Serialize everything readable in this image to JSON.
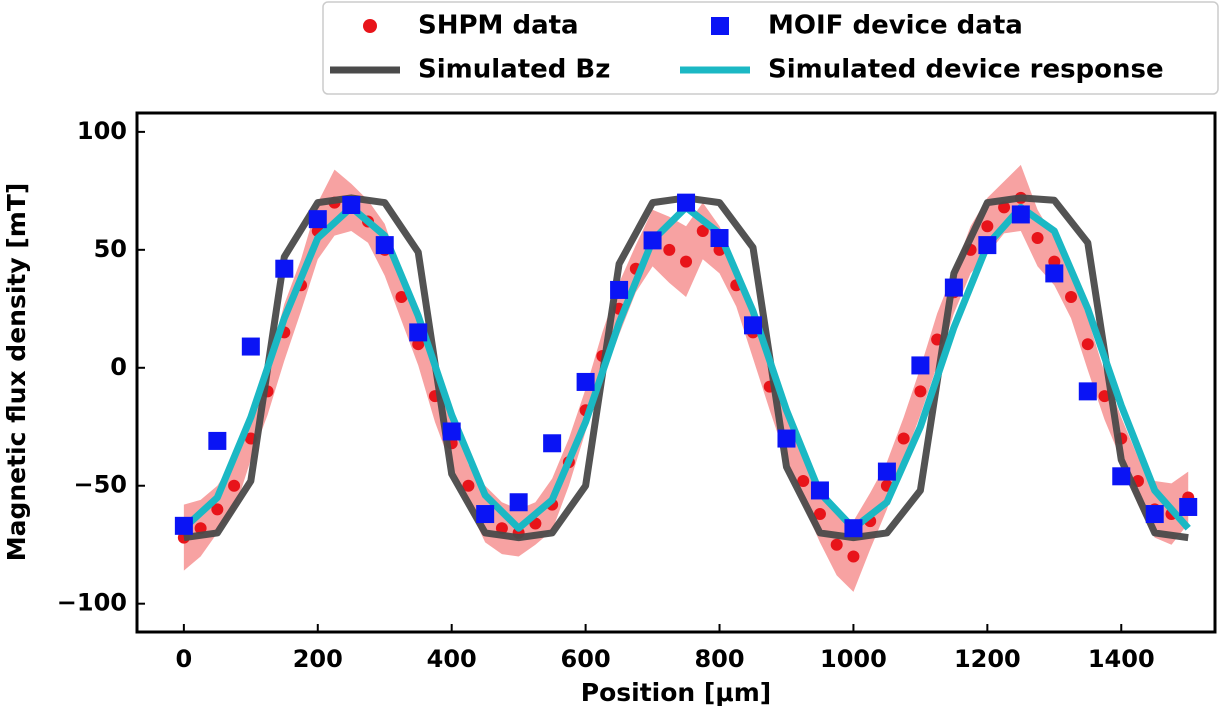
{
  "chart_data": {
    "type": "line",
    "xlabel": "Position [μm]",
    "ylabel": "Magnetic flux density [mT]",
    "xlim": [
      -70,
      1540
    ],
    "ylim": [
      -112,
      108
    ],
    "xticks": [
      0,
      200,
      400,
      600,
      800,
      1000,
      1200,
      1400
    ],
    "yticks": [
      {
        "value": -100,
        "label": "−100"
      },
      {
        "value": -50,
        "label": "−50"
      },
      0,
      50,
      100
    ],
    "legend": "top right",
    "series": [
      {
        "name": "SHPM data",
        "kind": "scatter",
        "marker": "circle",
        "color": "#e8141a",
        "band_color": "#f47a7a",
        "x": [
          0,
          25,
          50,
          75,
          100,
          125,
          150,
          175,
          200,
          225,
          250,
          275,
          300,
          325,
          350,
          375,
          400,
          425,
          450,
          475,
          500,
          525,
          550,
          575,
          600,
          625,
          650,
          675,
          700,
          725,
          750,
          775,
          800,
          825,
          850,
          875,
          900,
          925,
          950,
          975,
          1000,
          1025,
          1050,
          1075,
          1100,
          1125,
          1150,
          1175,
          1200,
          1225,
          1250,
          1275,
          1300,
          1325,
          1350,
          1375,
          1400,
          1425,
          1450,
          1475,
          1500
        ],
        "values": [
          -72,
          -68,
          -60,
          -50,
          -30,
          -10,
          15,
          35,
          58,
          70,
          68,
          62,
          50,
          30,
          10,
          -12,
          -32,
          -50,
          -62,
          -68,
          -70,
          -66,
          -58,
          -40,
          -18,
          5,
          25,
          42,
          55,
          50,
          45,
          58,
          50,
          35,
          15,
          -8,
          -30,
          -48,
          -62,
          -75,
          -80,
          -65,
          -50,
          -30,
          -10,
          12,
          32,
          50,
          60,
          68,
          72,
          55,
          45,
          30,
          10,
          -12,
          -30,
          -48,
          -60,
          -62,
          -55
        ],
        "error": [
          14,
          12,
          10,
          11,
          9,
          10,
          12,
          11,
          12,
          14,
          10,
          9,
          11,
          10,
          9,
          11,
          10,
          9,
          12,
          11,
          10,
          9,
          11,
          10,
          9,
          10,
          11,
          10,
          12,
          14,
          15,
          12,
          10,
          9,
          11,
          10,
          9,
          10,
          12,
          13,
          15,
          12,
          10,
          9,
          10,
          11,
          9,
          10,
          12,
          11,
          14,
          12,
          10,
          9,
          11,
          10,
          9,
          10,
          12,
          13,
          11
        ]
      },
      {
        "name": "MOIF device data",
        "kind": "scatter",
        "marker": "square",
        "color": "#0a14f5",
        "x": [
          0,
          50,
          100,
          150,
          200,
          250,
          300,
          350,
          400,
          450,
          500,
          550,
          600,
          650,
          700,
          750,
          800,
          850,
          900,
          950,
          1000,
          1050,
          1100,
          1150,
          1200,
          1250,
          1300,
          1350,
          1400,
          1450,
          1500
        ],
        "values": [
          -67,
          -31,
          9,
          42,
          63,
          69,
          52,
          15,
          -27,
          -62,
          -57,
          -32,
          -6,
          33,
          54,
          70,
          55,
          18,
          -30,
          -52,
          -68,
          -44,
          1,
          34,
          52,
          65,
          40,
          -10,
          -46,
          -62,
          -59
        ]
      },
      {
        "name": "Simulated Bz",
        "kind": "line",
        "color": "#4a4a4a",
        "x": [
          0,
          50,
          100,
          150,
          200,
          250,
          300,
          350,
          400,
          450,
          500,
          550,
          600,
          650,
          700,
          750,
          800,
          850,
          900,
          950,
          1000,
          1050,
          1100,
          1150,
          1200,
          1250,
          1300,
          1350,
          1400,
          1450,
          1500
        ],
        "values": [
          -72,
          -70,
          -48,
          47,
          70,
          72,
          70,
          49,
          -45,
          -70,
          -72,
          -70,
          -50,
          44,
          70,
          72,
          70,
          51,
          -42,
          -70,
          -72,
          -70,
          -52,
          40,
          70,
          72,
          71,
          53,
          -39,
          -70,
          -72
        ]
      },
      {
        "name": "Simulated device response",
        "kind": "line",
        "color": "#1bb8c4",
        "x": [
          0,
          50,
          100,
          150,
          200,
          250,
          300,
          350,
          400,
          450,
          500,
          550,
          600,
          650,
          700,
          750,
          800,
          850,
          900,
          950,
          1000,
          1050,
          1100,
          1150,
          1200,
          1250,
          1300,
          1350,
          1400,
          1450,
          1500
        ],
        "values": [
          -68,
          -55,
          -21,
          21,
          55,
          68,
          56,
          22,
          -20,
          -54,
          -68,
          -56,
          -23,
          19,
          54,
          68,
          57,
          24,
          -18,
          -53,
          -68,
          -57,
          -25,
          17,
          52,
          68,
          58,
          25,
          -16,
          -52,
          -68
        ]
      }
    ]
  }
}
